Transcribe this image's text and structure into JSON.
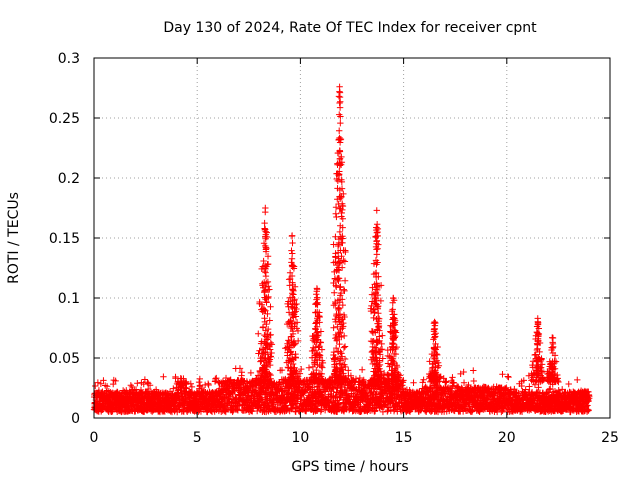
{
  "chart_data": {
    "type": "scatter",
    "title": "Day 130 of 2024, Rate Of TEC Index for receiver cpnt",
    "xlabel": "GPS time / hours",
    "ylabel": "ROTI / TECUs",
    "xlim": [
      0,
      25
    ],
    "ylim": [
      0,
      0.3
    ],
    "x_ticks": [
      "0",
      "5",
      "10",
      "15",
      "20",
      "25"
    ],
    "y_ticks": [
      "0",
      "0.05",
      "0.1",
      "0.15",
      "0.2",
      "0.25",
      "0.3"
    ],
    "grid": true,
    "marker": "plus",
    "color": "#ff0000",
    "series": [
      {
        "name": "ROTI",
        "description": "Dense scatter of ROTI values over 24 h; baseline mostly 0.005-0.04 TECU/min, with enhancements near 8.3 h, 9.5-10.5 h, 11.9 h, 13.7 h, 16.5 h and 21.5 h",
        "baseline_range": [
          0.005,
          0.04
        ],
        "time_range_hours": [
          0.0,
          24.0
        ],
        "peaks": [
          {
            "x": 8.3,
            "y": 0.175
          },
          {
            "x": 9.6,
            "y": 0.152
          },
          {
            "x": 10.8,
            "y": 0.108
          },
          {
            "x": 11.9,
            "y": 0.276
          },
          {
            "x": 13.7,
            "y": 0.173
          },
          {
            "x": 14.5,
            "y": 0.1
          },
          {
            "x": 16.5,
            "y": 0.08
          },
          {
            "x": 21.5,
            "y": 0.083
          },
          {
            "x": 22.2,
            "y": 0.067
          }
        ]
      }
    ]
  }
}
